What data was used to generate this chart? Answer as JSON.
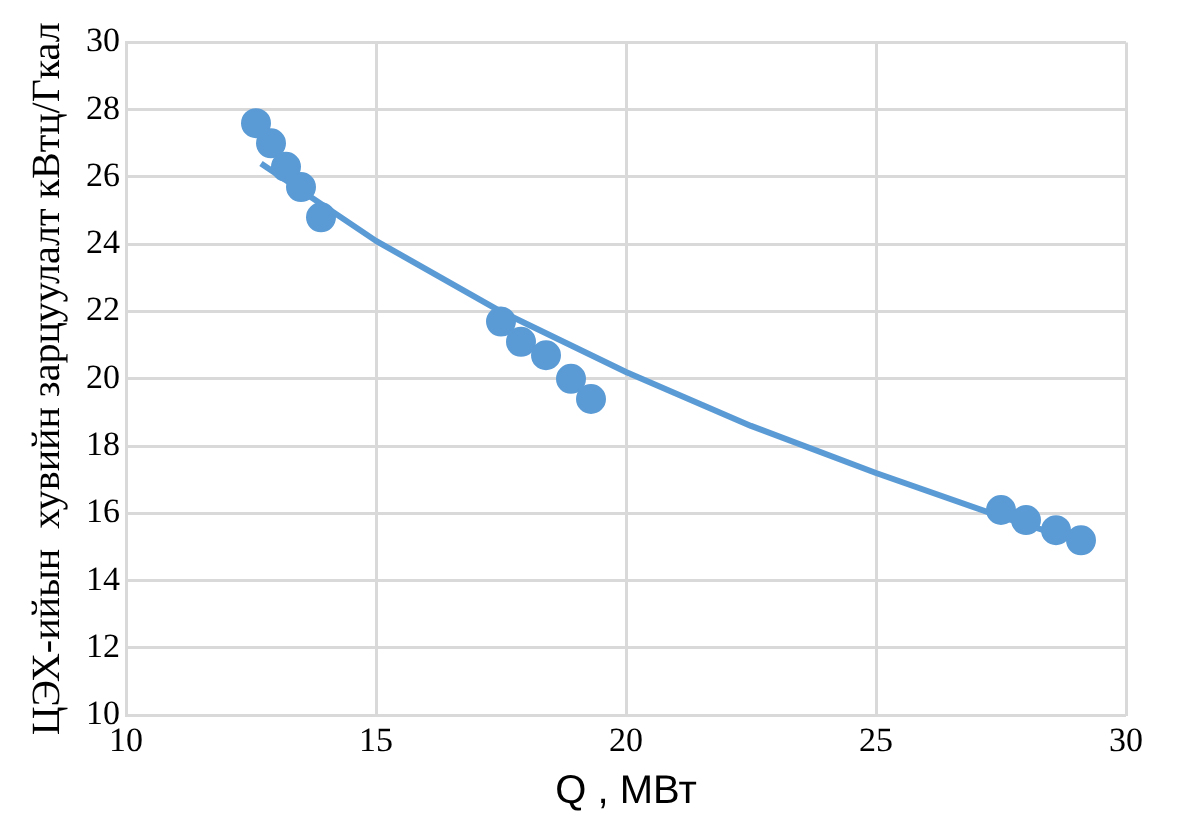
{
  "chart_data": {
    "type": "scatter",
    "xlabel": "Q , МВт",
    "ylabel": "ЦЭХ-ийын  хувийн зарцуулалт кВтц/Гкал",
    "xlim": [
      10,
      30
    ],
    "xticks": [
      10,
      15,
      20,
      25,
      30
    ],
    "ylim": [
      10,
      30
    ],
    "yticks": [
      10,
      12,
      14,
      16,
      18,
      20,
      22,
      24,
      26,
      28,
      30
    ],
    "grid": true,
    "legend": false,
    "marker": "circle",
    "series": [
      {
        "color": "#5b9bd5",
        "x": [
          12.6,
          12.9,
          13.2,
          13.5,
          13.9
        ],
        "values": [
          27.6,
          27.0,
          26.3,
          25.7,
          24.8
        ]
      },
      {
        "color": "#5b9bd5",
        "x": [
          17.5,
          17.9,
          18.4,
          18.9,
          19.3
        ],
        "values": [
          21.7,
          21.1,
          20.7,
          20.0,
          19.4
        ]
      },
      {
        "color": "#5b9bd5",
        "x": [
          27.5,
          28.0,
          28.6,
          29.1
        ],
        "values": [
          16.1,
          15.8,
          15.5,
          15.2
        ]
      },
      {
        "type": "line",
        "marker": "none",
        "color": "#5b9bd5",
        "x": [
          12.7,
          15,
          17.5,
          20,
          22.5,
          25,
          27.5,
          29.2
        ],
        "values": [
          26.4,
          24.1,
          22.0,
          20.2,
          18.6,
          17.2,
          15.9,
          15.1
        ]
      }
    ]
  }
}
